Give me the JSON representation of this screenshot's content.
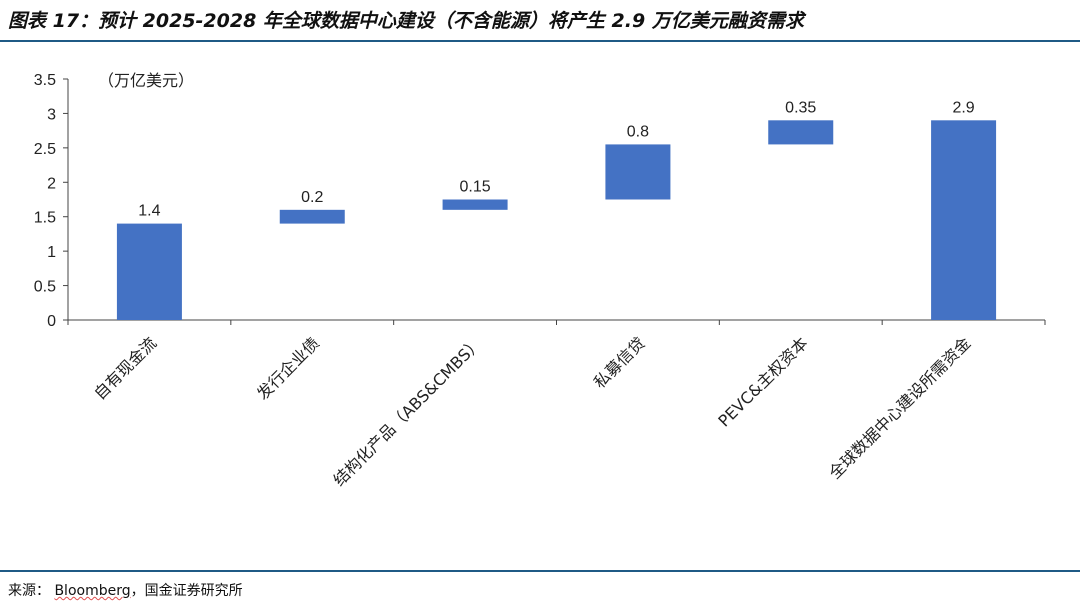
{
  "title": "图表 17：预计 2025-2028 年全球数据中心建设（不含能源）将产生 2.9 万亿美元融资需求",
  "source": {
    "label": "来源：",
    "items": "Bloomberg",
    "rest": "，国金证券研究所"
  },
  "chart_data": {
    "type": "bar",
    "subtype": "waterfall",
    "unit_label": "（万亿美元）",
    "categories": [
      "自有现金流",
      "发行企业债",
      "结构化产品（ABS&CMBS）",
      "私募信贷",
      "PEVC&主权资本",
      "全球数据中心建设所需资金"
    ],
    "values": [
      1.4,
      0.2,
      0.15,
      0.8,
      0.35,
      2.9
    ],
    "bases": [
      0,
      1.4,
      1.6,
      1.75,
      2.55,
      0
    ],
    "data_labels": [
      "1.4",
      "0.2",
      "0.15",
      "0.8",
      "0.35",
      "2.9"
    ],
    "ylim": [
      0,
      3.5
    ],
    "yticks": [
      "0",
      "0.5",
      "1",
      "1.5",
      "2",
      "2.5",
      "3",
      "3.5"
    ],
    "grid": false,
    "bar_color": "#4472c4"
  }
}
